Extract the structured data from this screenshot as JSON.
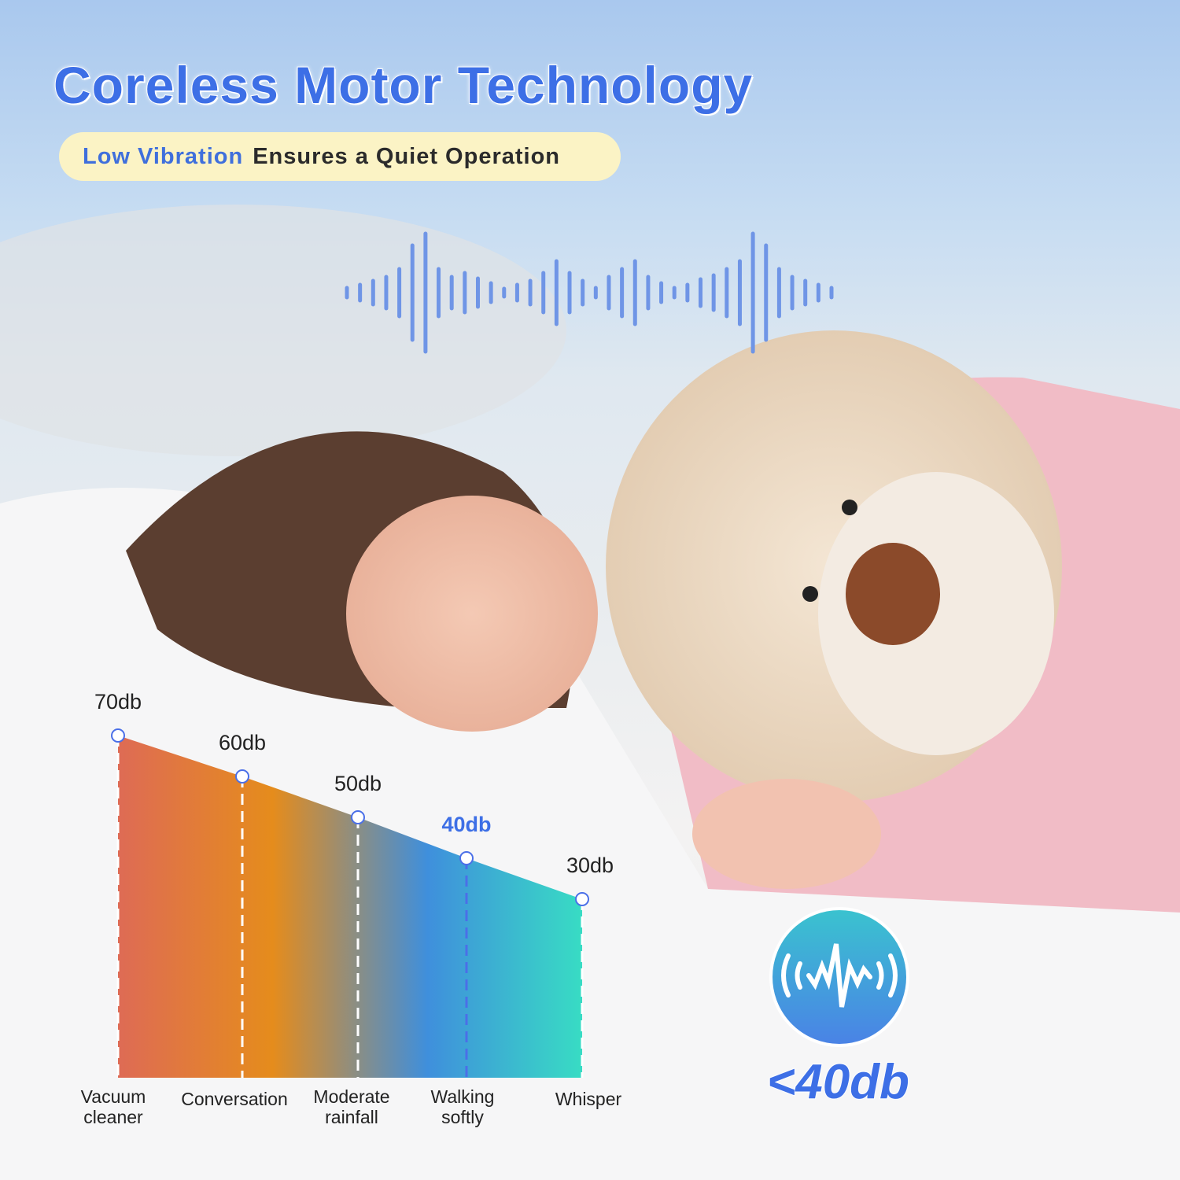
{
  "header": {
    "title": "Coreless Motor Technology",
    "subtitle_highlight": "Low Vibration",
    "subtitle_rest": "Ensures a Quiet Operation"
  },
  "badge": {
    "icon": "sound-wave-icon",
    "text": "<40db"
  },
  "colors": {
    "accent": "#3d6fe6",
    "pill": "#fbf3c5",
    "highlight_label": "#3f6fdc"
  },
  "chart_data": {
    "type": "area",
    "categories": [
      "Vacuum cleaner",
      "Conversation",
      "Moderate rainfall",
      "Walking softly",
      "Whisper"
    ],
    "category_lines": [
      [
        "Vacuum",
        "cleaner"
      ],
      [
        "Conversation"
      ],
      [
        "Moderate",
        "rainfall"
      ],
      [
        "Walking",
        "softly"
      ],
      [
        "Whisper"
      ]
    ],
    "values": [
      70,
      60,
      50,
      40,
      30
    ],
    "data_labels": [
      "70db",
      "60db",
      "50db",
      "40db",
      "30db"
    ],
    "highlighted": "40db",
    "gradient_colors": [
      "#de6b55",
      "#e58c1c",
      "#3f8fdc",
      "#38dcc4"
    ],
    "title": "",
    "xlabel": "",
    "ylabel": "",
    "grid": false
  }
}
